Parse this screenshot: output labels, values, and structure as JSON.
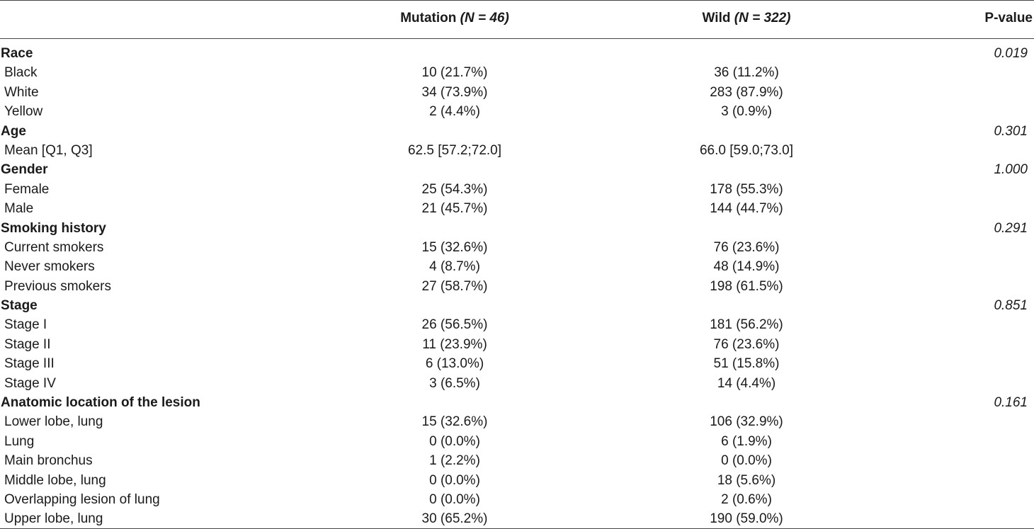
{
  "header": {
    "mutation_label": "Mutation",
    "mutation_n": "(N = 46)",
    "wild_label": "Wild",
    "wild_n": "(N = 322)",
    "pvalue_label": "P-value"
  },
  "rows": [
    {
      "type": "section",
      "label": "Race",
      "mutation": "",
      "wild": "",
      "p": "0.019"
    },
    {
      "type": "item",
      "label": "Black",
      "mutation": "10 (21.7%)",
      "wild": "36 (11.2%)",
      "p": ""
    },
    {
      "type": "item",
      "label": "White",
      "mutation": "34 (73.9%)",
      "wild": "283 (87.9%)",
      "p": ""
    },
    {
      "type": "item",
      "label": "Yellow",
      "mutation": "2 (4.4%)",
      "wild": "3 (0.9%)",
      "p": ""
    },
    {
      "type": "section",
      "label": "Age",
      "mutation": "",
      "wild": "",
      "p": "0.301"
    },
    {
      "type": "item",
      "label": "Mean [Q1, Q3]",
      "mutation": "62.5 [57.2;72.0]",
      "wild": "66.0 [59.0;73.0]",
      "p": ""
    },
    {
      "type": "section",
      "label": "Gender",
      "mutation": "",
      "wild": "",
      "p": "1.000"
    },
    {
      "type": "item",
      "label": "Female",
      "mutation": "25 (54.3%)",
      "wild": "178 (55.3%)",
      "p": ""
    },
    {
      "type": "item",
      "label": "Male",
      "mutation": "21 (45.7%)",
      "wild": "144 (44.7%)",
      "p": ""
    },
    {
      "type": "section",
      "label": "Smoking history",
      "mutation": "",
      "wild": "",
      "p": "0.291"
    },
    {
      "type": "item",
      "label": "Current smokers",
      "mutation": "15 (32.6%)",
      "wild": "76 (23.6%)",
      "p": ""
    },
    {
      "type": "item",
      "label": "Never smokers",
      "mutation": "4 (8.7%)",
      "wild": "48 (14.9%)",
      "p": ""
    },
    {
      "type": "item",
      "label": "Previous smokers",
      "mutation": "27 (58.7%)",
      "wild": "198 (61.5%)",
      "p": ""
    },
    {
      "type": "section",
      "label": "Stage",
      "mutation": "",
      "wild": "",
      "p": "0.851"
    },
    {
      "type": "item",
      "label": "Stage I",
      "mutation": "26 (56.5%)",
      "wild": "181 (56.2%)",
      "p": ""
    },
    {
      "type": "item",
      "label": "Stage II",
      "mutation": "11 (23.9%)",
      "wild": "76 (23.6%)",
      "p": ""
    },
    {
      "type": "item",
      "label": "Stage III",
      "mutation": "6 (13.0%)",
      "wild": "51 (15.8%)",
      "p": ""
    },
    {
      "type": "item",
      "label": "Stage IV",
      "mutation": "3 (6.5%)",
      "wild": "14 (4.4%)",
      "p": ""
    },
    {
      "type": "section",
      "label": "Anatomic location of the lesion",
      "mutation": "",
      "wild": "",
      "p": "0.161"
    },
    {
      "type": "item",
      "label": "Lower lobe, lung",
      "mutation": "15 (32.6%)",
      "wild": "106 (32.9%)",
      "p": ""
    },
    {
      "type": "item",
      "label": "Lung",
      "mutation": "0 (0.0%)",
      "wild": "6 (1.9%)",
      "p": ""
    },
    {
      "type": "item",
      "label": "Main bronchus",
      "mutation": "1 (2.2%)",
      "wild": "0 (0.0%)",
      "p": ""
    },
    {
      "type": "item",
      "label": "Middle lobe, lung",
      "mutation": "0 (0.0%)",
      "wild": "18 (5.6%)",
      "p": ""
    },
    {
      "type": "item",
      "label": "Overlapping lesion of lung",
      "mutation": "0 (0.0%)",
      "wild": "2 (0.6%)",
      "p": ""
    },
    {
      "type": "item",
      "label": "Upper lobe, lung",
      "mutation": "30 (65.2%)",
      "wild": "190 (59.0%)",
      "p": ""
    }
  ]
}
